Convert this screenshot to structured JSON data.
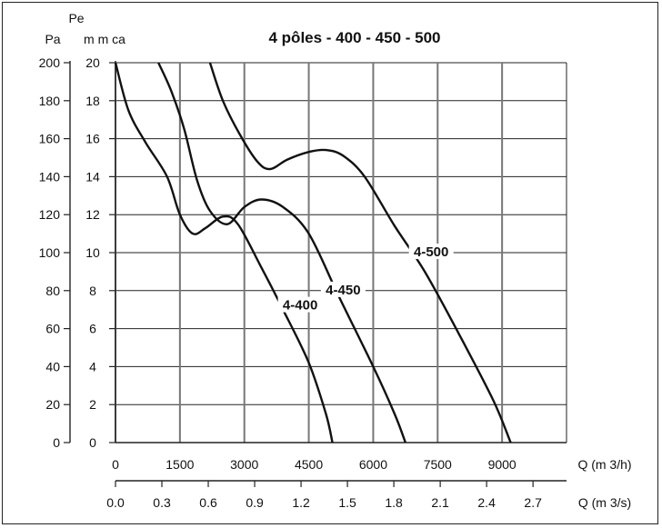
{
  "chart_data": {
    "type": "line",
    "title": "4 pôles - 400 - 450 - 500",
    "y_axes": [
      {
        "unit_label": "Pa",
        "range": [
          0,
          200
        ],
        "ticks": [
          "0",
          "20",
          "40",
          "60",
          "80",
          "100",
          "120",
          "140",
          "160",
          "180",
          "200"
        ]
      },
      {
        "unit_label_top": "Pe",
        "unit_label": "m m ca",
        "range": [
          0,
          20
        ],
        "ticks": [
          "0",
          "2",
          "4",
          "6",
          "8",
          "10",
          "12",
          "14",
          "16",
          "18",
          "20"
        ]
      }
    ],
    "x_axes": [
      {
        "label": "Q (m 3/h)",
        "range": [
          0,
          10500
        ],
        "ticks": [
          "0",
          "1500",
          "3000",
          "4500",
          "6000",
          "7500",
          "9000"
        ]
      },
      {
        "label": "Q (m 3/s)",
        "range": [
          0,
          2.9167
        ],
        "ticks": [
          "0.0",
          "0.3",
          "0.6",
          "0.9",
          "1.2",
          "1.5",
          "1.8",
          "2.1",
          "2.4",
          "2.7"
        ]
      }
    ],
    "grid": true,
    "series": [
      {
        "name": "4-400",
        "label_at": [
          4300,
          71
        ],
        "points": [
          [
            0,
            200
          ],
          [
            300,
            175
          ],
          [
            700,
            158
          ],
          [
            1200,
            140
          ],
          [
            1500,
            120
          ],
          [
            1800,
            110
          ],
          [
            2100,
            113
          ],
          [
            2500,
            119
          ],
          [
            2850,
            115
          ],
          [
            3400,
            92
          ],
          [
            3900,
            70
          ],
          [
            4500,
            42
          ],
          [
            4900,
            15
          ],
          [
            5050,
            0
          ]
        ]
      },
      {
        "name": "4-450",
        "label_at": [
          5300,
          79
        ],
        "points": [
          [
            1000,
            200
          ],
          [
            1300,
            185
          ],
          [
            1600,
            165
          ],
          [
            1900,
            138
          ],
          [
            2200,
            122
          ],
          [
            2600,
            115
          ],
          [
            3000,
            124
          ],
          [
            3400,
            128
          ],
          [
            3900,
            124
          ],
          [
            4500,
            110
          ],
          [
            5200,
            77
          ],
          [
            6000,
            40
          ],
          [
            6500,
            15
          ],
          [
            6750,
            0
          ]
        ]
      },
      {
        "name": "4-500",
        "label_at": [
          7350,
          99
        ],
        "points": [
          [
            2200,
            200
          ],
          [
            2500,
            180
          ],
          [
            2900,
            162
          ],
          [
            3300,
            148
          ],
          [
            3600,
            144
          ],
          [
            4000,
            149
          ],
          [
            4500,
            153
          ],
          [
            4900,
            154
          ],
          [
            5300,
            151
          ],
          [
            5800,
            140
          ],
          [
            6500,
            114
          ],
          [
            7200,
            90
          ],
          [
            8000,
            57
          ],
          [
            8800,
            22
          ],
          [
            9200,
            0
          ]
        ]
      }
    ]
  }
}
